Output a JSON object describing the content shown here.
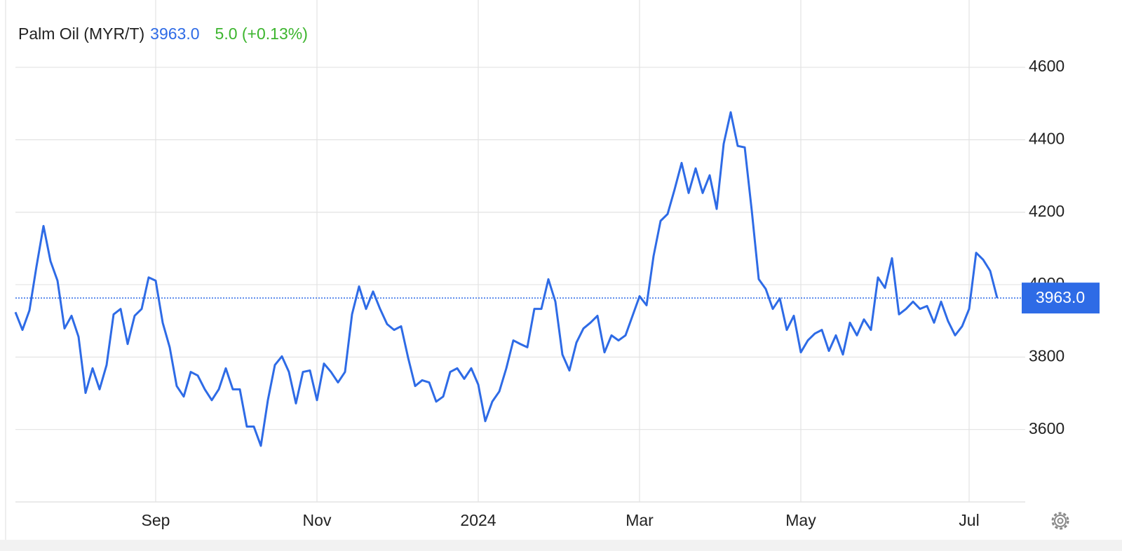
{
  "chart_data": {
    "type": "line",
    "title": "Palm Oil (MYR/T)",
    "price_label": "3963.0",
    "change_label": "5.0 (+0.13%)",
    "categories": [
      null,
      null,
      null,
      null,
      null,
      null,
      null,
      null,
      null,
      null,
      null,
      null,
      null,
      null,
      null,
      null,
      null,
      null,
      null,
      null,
      "Sep",
      null,
      null,
      null,
      null,
      null,
      null,
      null,
      null,
      null,
      null,
      null,
      null,
      null,
      null,
      null,
      null,
      null,
      null,
      null,
      null,
      null,
      null,
      "Nov",
      null,
      null,
      null,
      null,
      null,
      null,
      null,
      null,
      null,
      null,
      null,
      null,
      null,
      null,
      null,
      null,
      null,
      null,
      null,
      null,
      null,
      null,
      "2024",
      null,
      null,
      null,
      null,
      null,
      null,
      null,
      null,
      null,
      null,
      null,
      null,
      null,
      null,
      null,
      null,
      null,
      null,
      null,
      null,
      null,
      null,
      "Mar",
      null,
      null,
      null,
      null,
      null,
      null,
      null,
      null,
      null,
      null,
      null,
      null,
      null,
      null,
      null,
      null,
      null,
      null,
      null,
      null,
      null,
      null,
      "May",
      null,
      null,
      null,
      null,
      null,
      null,
      null,
      null,
      null,
      null,
      null,
      null,
      null,
      null,
      null,
      null,
      null,
      null,
      null,
      null,
      null,
      null,
      null,
      "Jul",
      null,
      null,
      null,
      null
    ],
    "series": [
      {
        "name": "Palm Oil (MYR/T)",
        "color": "#2e6be6",
        "values": [
          3924,
          3875,
          3929,
          4050,
          4162,
          4065,
          4011,
          3879,
          3914,
          3856,
          3701,
          3769,
          3711,
          3778,
          3918,
          3933,
          3836,
          3914,
          3933,
          4020,
          4011,
          3895,
          3827,
          3720,
          3691,
          3759,
          3749,
          3711,
          3681,
          3711,
          3769,
          3711,
          3711,
          3608,
          3608,
          3555,
          3681,
          3778,
          3802,
          3759,
          3672,
          3759,
          3763,
          3681,
          3782,
          3759,
          3730,
          3759,
          3918,
          3995,
          3933,
          3981,
          3933,
          3891,
          3875,
          3885,
          3798,
          3720,
          3736,
          3730,
          3677,
          3691,
          3759,
          3769,
          3740,
          3769,
          3724,
          3623,
          3677,
          3705,
          3769,
          3846,
          3836,
          3827,
          3933,
          3933,
          4015,
          3953,
          3807,
          3763,
          3840,
          3879,
          3895,
          3914,
          3813,
          3860,
          3846,
          3860,
          3914,
          3968,
          3943,
          4079,
          4176,
          4195,
          4263,
          4336,
          4253,
          4321,
          4253,
          4302,
          4209,
          4389,
          4476,
          4383,
          4379,
          4205,
          4015,
          3988,
          3933,
          3962,
          3875,
          3914,
          3813,
          3846,
          3865,
          3875,
          3817,
          3860,
          3807,
          3895,
          3860,
          3904,
          3875,
          4020,
          3991,
          4073,
          3918,
          3933,
          3953,
          3933,
          3941,
          3895,
          3953,
          3899,
          3860,
          3885,
          3933,
          4088,
          4069,
          4038,
          3963
        ]
      }
    ],
    "ylim": [
      3400,
      4780
    ],
    "yticks": [
      3600,
      3800,
      4000,
      4200,
      4400,
      4600
    ],
    "grid": true,
    "badge_color": "#2e6be6",
    "change_color": "#3cb52e"
  }
}
